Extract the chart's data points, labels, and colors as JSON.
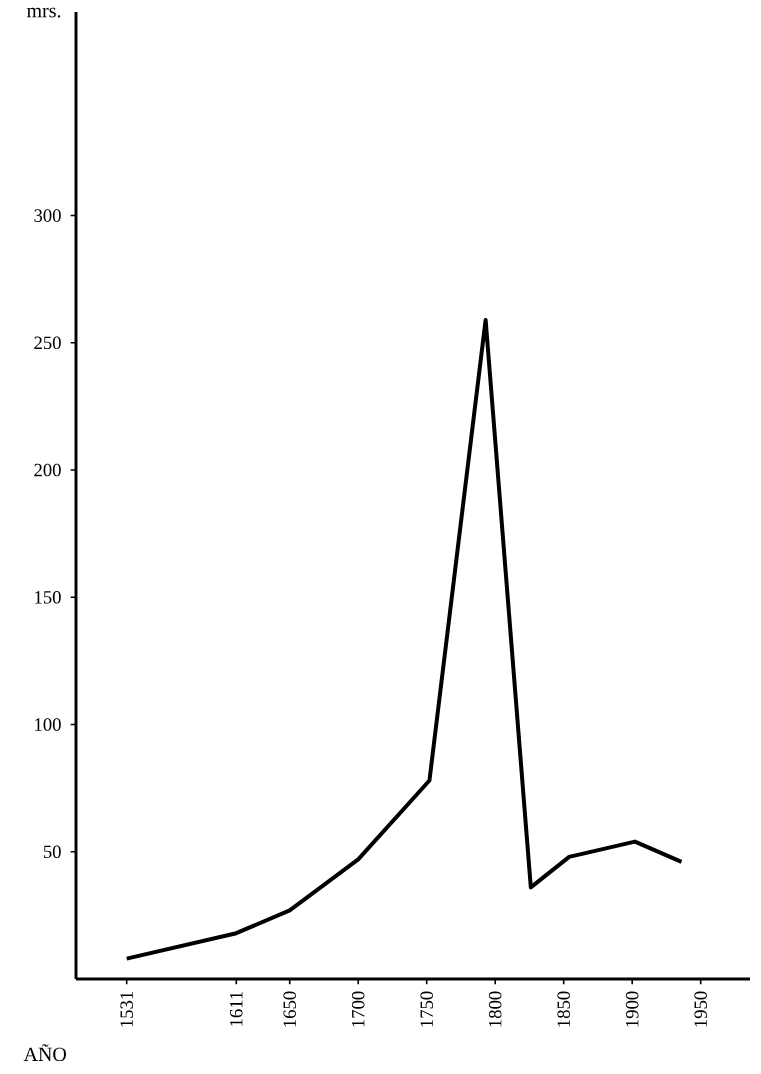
{
  "chart_data": {
    "type": "line",
    "xlabel": "AÑO",
    "ylabel": "mrs.",
    "x": [
      1531,
      1611,
      1650,
      1700,
      1752,
      1793,
      1826,
      1854,
      1902,
      1936
    ],
    "values": [
      8,
      18,
      27,
      47,
      78,
      259,
      36,
      48,
      54,
      46
    ],
    "color": "#000000",
    "xlim": [
      1494,
      1986
    ],
    "ylim": [
      0,
      380
    ],
    "xticks": [
      1531,
      1611,
      1650,
      1700,
      1750,
      1800,
      1850,
      1900,
      1950
    ],
    "yticks": [
      50,
      100,
      150,
      200,
      250,
      300
    ]
  }
}
